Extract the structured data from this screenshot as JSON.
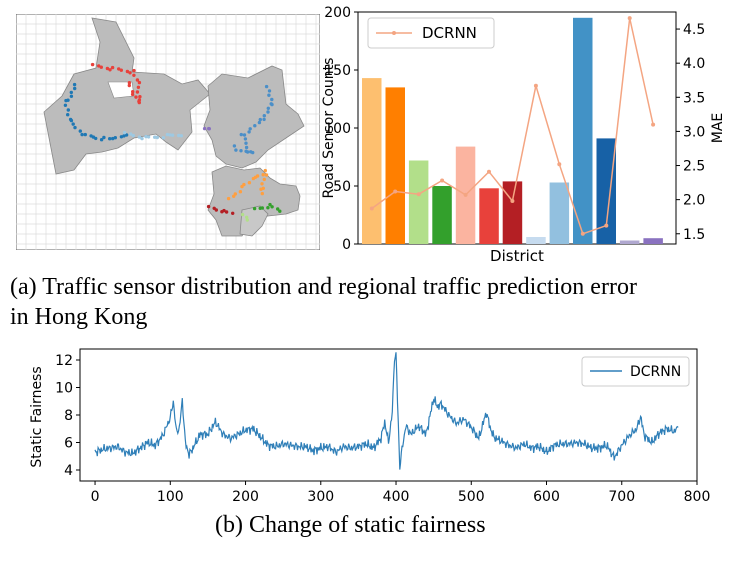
{
  "captions": {
    "a_line1": "(a) Traffic sensor distribution and regional traffic prediction error",
    "a_line2": "in Hong Kong",
    "b": "(b) Change of static fairness"
  },
  "chart_data": [
    {
      "type": "bar",
      "title": "",
      "xlabel": "District",
      "ylabel": "Road Sensor Counts",
      "ylabel_right": "MAE",
      "ylim": [
        0,
        200
      ],
      "ylim_right": [
        1.35,
        4.75
      ],
      "yticks": [
        0,
        50,
        100,
        150,
        200
      ],
      "yticks_right": [
        1.5,
        2.0,
        2.5,
        3.0,
        3.5,
        4.0,
        4.5
      ],
      "yticks_right_labels": [
        "1.5",
        "2.0",
        "2.5",
        "3.0",
        "3.5",
        "4.0",
        "4.5"
      ],
      "legend": {
        "label": "DCRNN",
        "position": "top-left"
      },
      "bar_values": [
        143,
        135,
        72,
        50,
        84,
        48,
        54,
        6,
        53,
        195,
        91,
        3,
        5
      ],
      "bar_colors": [
        "#fdbf6f",
        "#ff7f00",
        "#b2df8a",
        "#33a02c",
        "#fbb4a0",
        "#e8413b",
        "#b41f24",
        "#c6dbef",
        "#92c0df",
        "#4292c6",
        "#1761a6",
        "#b0a8d0",
        "#8a72c0"
      ],
      "series": [
        {
          "name": "DCRNN",
          "color": "#f4a582",
          "values": [
            1.87,
            2.12,
            2.08,
            2.28,
            2.07,
            2.41,
            1.98,
            3.67,
            2.52,
            1.5,
            1.62,
            4.66,
            3.1
          ]
        }
      ]
    },
    {
      "type": "line",
      "title": "",
      "xlabel": "",
      "ylabel": "Static Fairness",
      "xlim": [
        -20,
        800
      ],
      "ylim": [
        3.2,
        12.8
      ],
      "xticks": [
        0,
        100,
        200,
        300,
        400,
        500,
        600,
        700,
        800
      ],
      "yticks": [
        4,
        6,
        8,
        10,
        12
      ],
      "legend": {
        "label": "DCRNN",
        "position": "top-right"
      },
      "series": [
        {
          "name": "DCRNN",
          "color": "#2f7fb8",
          "anchors": [
            [
              0,
              5.3
            ],
            [
              10,
              5.5
            ],
            [
              20,
              5.6
            ],
            [
              30,
              5.7
            ],
            [
              40,
              5.3
            ],
            [
              50,
              5.2
            ],
            [
              60,
              5.6
            ],
            [
              70,
              6.0
            ],
            [
              80,
              5.8
            ],
            [
              90,
              6.5
            ],
            [
              100,
              7.8
            ],
            [
              104,
              9.0
            ],
            [
              108,
              6.8
            ],
            [
              112,
              7.0
            ],
            [
              116,
              9.1
            ],
            [
              120,
              6.0
            ],
            [
              125,
              5.1
            ],
            [
              130,
              5.6
            ],
            [
              140,
              6.6
            ],
            [
              150,
              6.6
            ],
            [
              160,
              7.5
            ],
            [
              170,
              6.6
            ],
            [
              180,
              6.3
            ],
            [
              190,
              6.6
            ],
            [
              200,
              6.9
            ],
            [
              210,
              7.0
            ],
            [
              220,
              6.4
            ],
            [
              230,
              5.8
            ],
            [
              240,
              5.7
            ],
            [
              250,
              5.9
            ],
            [
              260,
              5.8
            ],
            [
              270,
              5.7
            ],
            [
              280,
              5.7
            ],
            [
              290,
              5.4
            ],
            [
              300,
              5.6
            ],
            [
              310,
              5.7
            ],
            [
              320,
              5.3
            ],
            [
              330,
              5.7
            ],
            [
              340,
              5.6
            ],
            [
              350,
              5.7
            ],
            [
              360,
              5.9
            ],
            [
              370,
              5.6
            ],
            [
              380,
              6.3
            ],
            [
              385,
              7.5
            ],
            [
              390,
              6.0
            ],
            [
              395,
              8.2
            ],
            [
              398,
              12.2
            ],
            [
              400,
              12.4
            ],
            [
              402,
              9.0
            ],
            [
              405,
              4.2
            ],
            [
              408,
              5.5
            ],
            [
              413,
              7.2
            ],
            [
              420,
              6.6
            ],
            [
              430,
              7.2
            ],
            [
              440,
              6.6
            ],
            [
              450,
              9.2
            ],
            [
              455,
              8.6
            ],
            [
              460,
              8.8
            ],
            [
              470,
              8.0
            ],
            [
              480,
              7.4
            ],
            [
              490,
              7.7
            ],
            [
              500,
              7.1
            ],
            [
              510,
              6.3
            ],
            [
              520,
              8.2
            ],
            [
              525,
              7.1
            ],
            [
              530,
              6.4
            ],
            [
              540,
              6.1
            ],
            [
              550,
              5.8
            ],
            [
              560,
              5.6
            ],
            [
              570,
              5.9
            ],
            [
              580,
              5.6
            ],
            [
              590,
              5.7
            ],
            [
              600,
              5.3
            ],
            [
              610,
              5.8
            ],
            [
              620,
              5.9
            ],
            [
              630,
              5.9
            ],
            [
              640,
              6.0
            ],
            [
              650,
              5.9
            ],
            [
              660,
              5.6
            ],
            [
              670,
              5.6
            ],
            [
              680,
              5.8
            ],
            [
              690,
              4.9
            ],
            [
              700,
              5.8
            ],
            [
              710,
              6.5
            ],
            [
              720,
              7.0
            ],
            [
              725,
              7.9
            ],
            [
              730,
              6.5
            ],
            [
              740,
              6.0
            ],
            [
              750,
              6.7
            ],
            [
              760,
              7.0
            ],
            [
              770,
              6.8
            ],
            [
              775,
              7.1
            ]
          ]
        }
      ]
    }
  ]
}
